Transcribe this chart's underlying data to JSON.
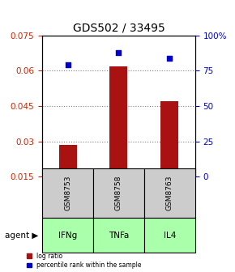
{
  "title": "GDS502 / 33495",
  "samples": [
    "GSM8753",
    "GSM8758",
    "GSM8763"
  ],
  "agents": [
    "IFNg",
    "TNFa",
    "IL4"
  ],
  "log_ratio": [
    0.0285,
    0.062,
    0.047
  ],
  "percentile_rank": [
    79,
    88,
    84
  ],
  "bar_color": "#aa1111",
  "dot_color": "#0000cc",
  "agent_color": "#aaffaa",
  "sample_color": "#cccccc",
  "ylim_left": [
    0.015,
    0.075
  ],
  "ylim_right": [
    0,
    100
  ],
  "yticks_left": [
    0.015,
    0.03,
    0.045,
    0.06,
    0.075
  ],
  "yticks_right": [
    0,
    25,
    50,
    75,
    100
  ],
  "ytick_labels_left": [
    "0.015",
    "0.03",
    "0.045",
    "0.06",
    "0.075"
  ],
  "ytick_labels_right": [
    "0",
    "25",
    "50",
    "75",
    "100%"
  ],
  "left_axis_color": "#cc2200",
  "right_axis_color": "#0000cc",
  "legend_log": "log ratio",
  "legend_pct": "percentile rank within the sample",
  "agent_label": "agent"
}
